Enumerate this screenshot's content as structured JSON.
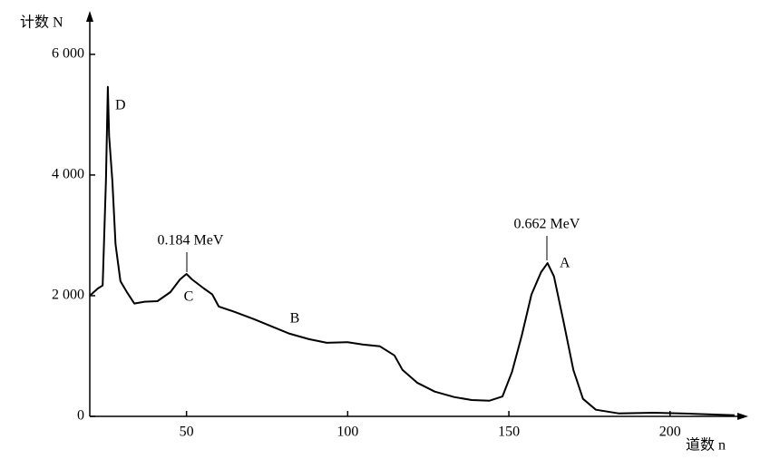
{
  "chart_data": {
    "type": "line",
    "y_label": "计数 N",
    "x_label": "道数 n",
    "x": [
      20,
      22.5,
      24,
      25,
      25.6,
      26,
      27,
      28,
      29.5,
      31.5,
      33.8,
      37,
      41,
      45,
      48,
      50,
      51.7,
      55.4,
      58,
      60,
      65,
      71,
      76.5,
      82,
      88,
      93.5,
      100,
      104.6,
      110,
      114.5,
      117,
      121.5,
      127,
      133,
      138.5,
      144,
      148,
      151,
      154,
      157,
      160,
      162,
      164,
      167,
      170,
      173,
      177,
      184,
      195,
      206,
      220
    ],
    "series": [
      {
        "color": "#000000",
        "values": [
          2000,
          2120,
          2170,
          3900,
          5460,
          4650,
          3900,
          2850,
          2240,
          2060,
          1870,
          1900,
          1910,
          2060,
          2270,
          2360,
          2270,
          2120,
          2020,
          1820,
          1730,
          1610,
          1490,
          1370,
          1280,
          1220,
          1230,
          1190,
          1160,
          1010,
          770,
          560,
          410,
          320,
          270,
          260,
          330,
          740,
          1340,
          2020,
          2390,
          2540,
          2320,
          1560,
          770,
          290,
          110,
          50,
          60,
          45,
          20
        ]
      }
    ],
    "xlim": [
      20,
      222
    ],
    "ylim": [
      0,
      6600
    ],
    "xticks": [
      50,
      100,
      150,
      200
    ],
    "yticks": [
      0,
      {
        "value": 2000,
        "label": "2 000"
      },
      {
        "value": 4000,
        "label": "4 000"
      },
      {
        "value": 6000,
        "label": "6 000"
      }
    ],
    "annotations": [
      "D",
      "C",
      "B",
      "A",
      "0.184 MeV",
      "0.662 MeV"
    ]
  }
}
